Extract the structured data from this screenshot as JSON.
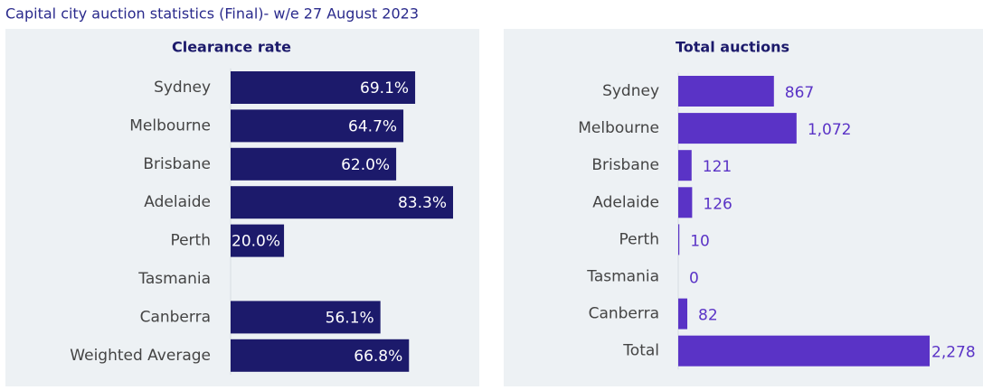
{
  "title": "Capital city auction statistics (Final)- w/e 27 August 2023",
  "chart_data": [
    {
      "type": "hbar",
      "title": "Clearance rate",
      "categories": [
        "Sydney",
        "Melbourne",
        "Brisbane",
        "Adelaide",
        "Perth",
        "Tasmania",
        "Canberra",
        "Weighted Average"
      ],
      "values": [
        69.1,
        64.7,
        62.0,
        83.3,
        20.0,
        null,
        56.1,
        66.8
      ],
      "value_labels": [
        "69.1%",
        "64.7%",
        "62.0%",
        "83.3%",
        "20.0%",
        null,
        "56.1%",
        "66.8%"
      ],
      "color": "#1c1a6b"
    },
    {
      "type": "hbar",
      "title": "Total auctions",
      "categories": [
        "Sydney",
        "Melbourne",
        "Brisbane",
        "Adelaide",
        "Perth",
        "Tasmania",
        "Canberra",
        "Total"
      ],
      "values": [
        867,
        1072,
        121,
        126,
        10,
        0,
        82,
        2278
      ],
      "value_labels": [
        "867",
        "1,072",
        "121",
        "126",
        "10",
        "0",
        "82",
        "2,278"
      ],
      "color": "#5a33c6"
    }
  ]
}
